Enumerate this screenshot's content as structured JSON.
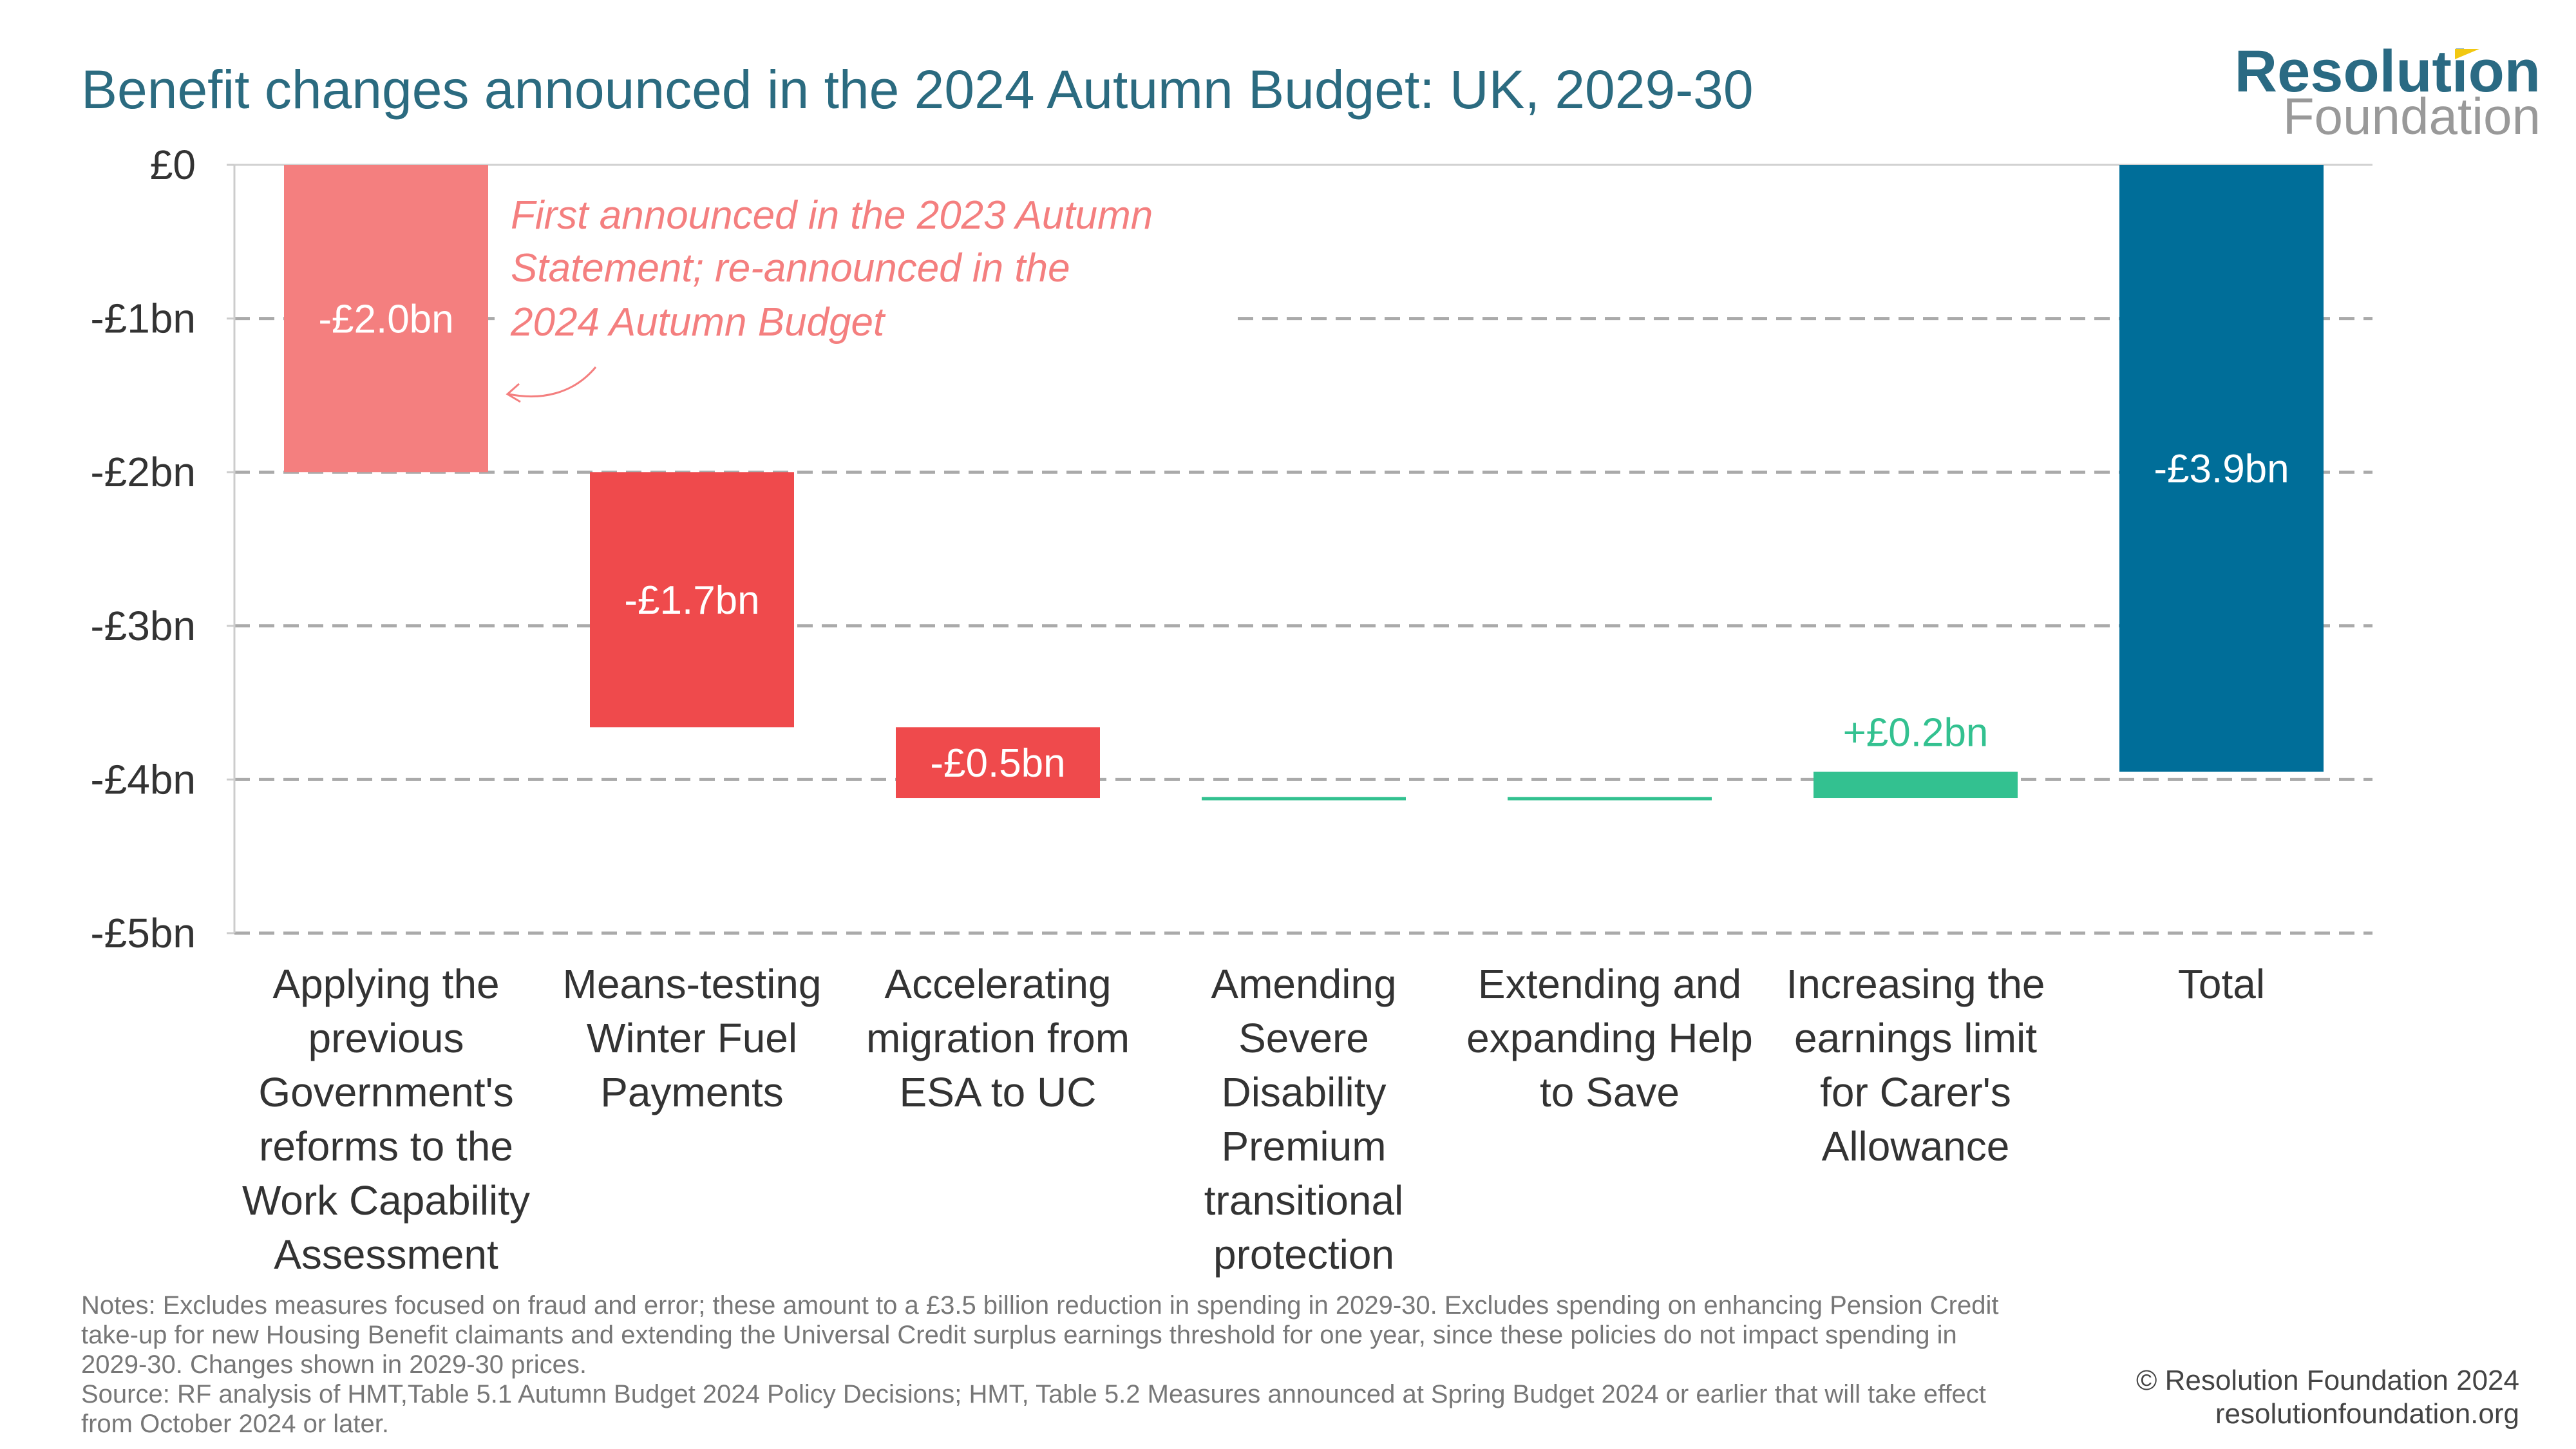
{
  "title": "Benefit changes announced in the 2024 Autumn Budget: UK, 2029-30",
  "logo": {
    "line1": "Resolution",
    "line2": "Foundation"
  },
  "annotation": [
    "First announced in the 2023 Autumn",
    "Statement; re-announced  in the",
    "2024 Autumn Budget"
  ],
  "notes": [
    "Notes: Excludes measures focused on fraud and error; these amount to a £3.5 billion reduction in spending in 2029-30. Excludes spending on enhancing Pension Credit",
    "take-up for new Housing Benefit claimants and extending the Universal Credit surplus earnings threshold for one year, since these policies do not impact spending in",
    "2029-30. Changes shown in 2029-30 prices.",
    "Source: RF analysis of HMT,Table 5.1  Autumn Budget 2024 Policy Decisions; HMT, Table 5.2 Measures announced at Spring Budget 2024 or earlier that will take effect",
    "from October 2024 or later."
  ],
  "copyright": "© Resolution Foundation 2024",
  "website": "resolutionfoundation.org",
  "colors": {
    "title": "#2b6b80",
    "wca": "#f47f7f",
    "cut": "#ef4a4c",
    "increase": "#33c190",
    "total": "#006e99",
    "grid": "#aaaaaa"
  },
  "chart_data": {
    "type": "waterfall",
    "title": "Benefit changes announced in the 2024 Autumn Budget: UK, 2029-30",
    "ylabel": "",
    "ylim": [
      -5,
      0
    ],
    "yticks": [
      0,
      -1,
      -2,
      -3,
      -4,
      -5
    ],
    "ytick_labels": [
      "£0",
      "-£1bn",
      "-£2bn",
      "-£3bn",
      "-£4bn",
      "-£5bn"
    ],
    "grid": true,
    "categories": [
      [
        "Applying the",
        "previous",
        "Government's",
        "reforms to the",
        "Work Capability",
        "Assessment"
      ],
      [
        "Means-testing",
        "Winter Fuel",
        "Payments"
      ],
      [
        "Accelerating",
        "migration from",
        "ESA to UC"
      ],
      [
        "Amending",
        "Severe",
        "Disability",
        "Premium",
        "transitional",
        "protection"
      ],
      [
        "Extending and",
        "expanding Help",
        "to Save"
      ],
      [
        "Increasing the",
        "earnings limit",
        "for Carer's",
        "Allowance"
      ],
      [
        "Total"
      ]
    ],
    "values": [
      -2.0,
      -1.66,
      -0.46,
      -0.01,
      0.01,
      0.17,
      -3.95
    ],
    "is_total": [
      false,
      false,
      false,
      false,
      false,
      false,
      true
    ],
    "data_labels": [
      "-£2.0bn",
      "-£1.7bn",
      "-£0.5bn",
      "",
      "",
      "+£0.2bn",
      "-£3.9bn"
    ],
    "bar_colors": [
      "#f47f7f",
      "#ef4a4c",
      "#ef4a4c",
      "#33c190",
      "#33c190",
      "#33c190",
      "#006e99"
    ],
    "label_colors": [
      "#ffffff",
      "#ffffff",
      "#ffffff",
      "#33c190",
      "#33c190",
      "#33c190",
      "#ffffff"
    ]
  }
}
